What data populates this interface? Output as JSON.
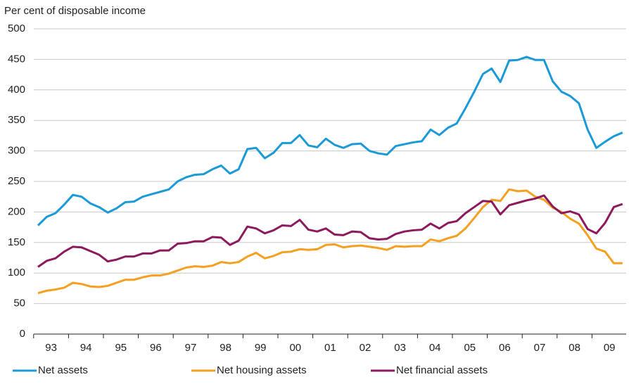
{
  "chart_data": {
    "type": "line",
    "y_label": "Per cent of disposable income",
    "categories": [
      null,
      "93",
      null,
      null,
      null,
      "94",
      null,
      null,
      null,
      "95",
      null,
      null,
      null,
      "96",
      null,
      null,
      null,
      "97",
      null,
      null,
      null,
      "98",
      null,
      null,
      null,
      "99",
      null,
      null,
      null,
      "00",
      null,
      null,
      null,
      "01",
      null,
      null,
      null,
      "02",
      null,
      null,
      null,
      "03",
      null,
      null,
      null,
      "04",
      null,
      null,
      null,
      "05",
      null,
      null,
      null,
      "06",
      null,
      null,
      null,
      "07",
      null,
      null,
      null,
      "08",
      null,
      null,
      null,
      "09",
      null,
      null
    ],
    "series": [
      {
        "name": "Net assets",
        "color": "#1a9ad6",
        "values": [
          178,
          192,
          198,
          212,
          228,
          225,
          214,
          208,
          199,
          206,
          216,
          217,
          225,
          229,
          233,
          237,
          250,
          257,
          261,
          262,
          270,
          276,
          263,
          270,
          303,
          305,
          288,
          297,
          313,
          313,
          326,
          309,
          306,
          320,
          310,
          305,
          311,
          312,
          300,
          296,
          294,
          308,
          311,
          314,
          316,
          335,
          326,
          338,
          345,
          370,
          397,
          426,
          435,
          413,
          448,
          449,
          454,
          449,
          449,
          414,
          397,
          390,
          378,
          335,
          305,
          315,
          324,
          330
        ]
      },
      {
        "name": "Net housing assets",
        "color": "#f5a021",
        "values": [
          67,
          71,
          73,
          76,
          84,
          82,
          78,
          77,
          79,
          84,
          89,
          89,
          93,
          96,
          96,
          99,
          104,
          109,
          111,
          110,
          112,
          118,
          116,
          118,
          127,
          133,
          124,
          128,
          134,
          135,
          139,
          138,
          139,
          146,
          147,
          142,
          144,
          145,
          143,
          141,
          138,
          144,
          143,
          144,
          144,
          155,
          152,
          157,
          161,
          173,
          190,
          208,
          220,
          218,
          237,
          234,
          235,
          225,
          220,
          207,
          200,
          189,
          181,
          162,
          140,
          135,
          116,
          116
        ]
      },
      {
        "name": "Net financial assets",
        "color": "#8c1a5c",
        "values": [
          110,
          120,
          124,
          135,
          143,
          142,
          136,
          130,
          119,
          122,
          127,
          127,
          132,
          132,
          137,
          137,
          148,
          149,
          152,
          152,
          159,
          158,
          146,
          153,
          176,
          173,
          165,
          170,
          178,
          177,
          187,
          171,
          168,
          173,
          163,
          162,
          168,
          167,
          157,
          155,
          156,
          164,
          168,
          170,
          171,
          181,
          173,
          182,
          185,
          198,
          208,
          218,
          217,
          196,
          211,
          215,
          219,
          222,
          227,
          209,
          198,
          201,
          196,
          172,
          165,
          182,
          208,
          213
        ]
      }
    ],
    "ylim": [
      0,
      500
    ],
    "yticks": [
      0,
      50,
      100,
      150,
      200,
      250,
      300,
      350,
      400,
      450,
      500
    ],
    "grid": true,
    "legend": "bottom"
  }
}
